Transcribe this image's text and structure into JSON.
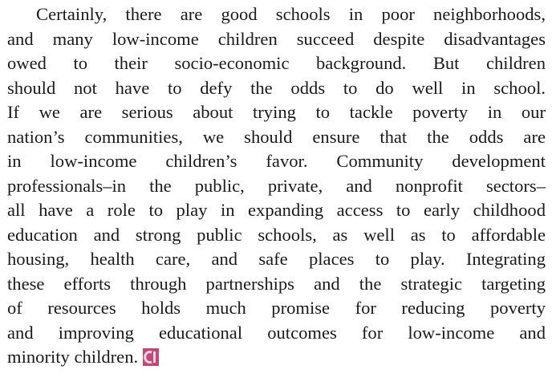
{
  "paragraph": {
    "lines": [
      "Certainly, there are good schools in poor neighborhoods,",
      "and many low-income children succeed despite disadvantages",
      "owed to their socio-economic background. But children",
      "should not have to defy the odds to do well in school.",
      "If we are serious about trying to tackle poverty in our",
      "nation’s communities, we should ensure that the odds are",
      "in low-income children’s favor. Community development",
      "professionals–in the public, private, and nonprofit sectors–",
      "all have a role to play in expanding access to early childhood",
      "education and strong public schools, as well as to affordable",
      "housing, health care, and safe places to play. Integrating",
      "these efforts through partnerships and the strategic targeting",
      "of resources holds much promise for reducing poverty",
      "and improving educational outcomes for low-income and",
      "minority children."
    ]
  }
}
